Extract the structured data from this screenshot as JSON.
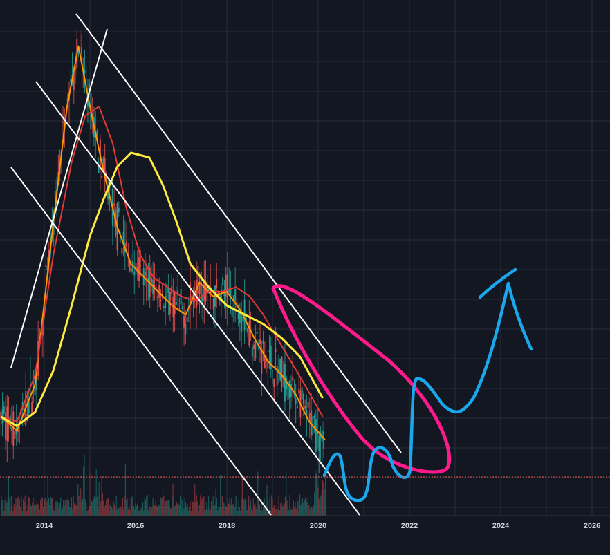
{
  "chart_data": {
    "type": "line",
    "title": "",
    "xlabel": "",
    "ylabel": "",
    "x_axis": {
      "ticks": [
        "2014",
        "2016",
        "2018",
        "2020",
        "2022",
        "2024",
        "2026"
      ],
      "range_years": [
        2013.05,
        2026.4
      ]
    },
    "y_axis": {
      "labels_visible": false,
      "scale": "log"
    },
    "grid": true,
    "legend": "none",
    "colors": {
      "background": "#131722",
      "grid": "#2a2e39",
      "axis_line": "#363a45",
      "candle_up": "#26a69a",
      "candle_down": "#ef5350",
      "ma_short": "#ff9800",
      "ma_mid": "#e53935",
      "ma_long": "#ffeb3b",
      "trendline": "#ffffff",
      "annotation_pink": "#ff1a8c",
      "annotation_blue": "#1aa7ec",
      "current_price_line": "#ef5350"
    },
    "series": [
      {
        "type": "line",
        "color": "#ff9800",
        "x": [
          2013.05,
          2013.4,
          2013.8,
          2014.2,
          2014.5,
          2014.75,
          2015.0,
          2015.3,
          2015.6,
          2015.9,
          2016.2,
          2016.5,
          2016.8,
          2017.1,
          2017.4,
          2017.7,
          2018.0,
          2018.3,
          2018.6,
          2018.9,
          2019.2,
          2019.5,
          2019.8,
          2020.15
        ],
        "y": [
          0.13,
          0.1,
          0.2,
          0.55,
          0.8,
          0.93,
          0.8,
          0.66,
          0.54,
          0.46,
          0.43,
          0.4,
          0.37,
          0.35,
          0.42,
          0.39,
          0.4,
          0.36,
          0.3,
          0.25,
          0.22,
          0.18,
          0.12,
          0.08
        ]
      },
      {
        "type": "line",
        "color": "#e53935",
        "x": [
          2013.05,
          2013.4,
          2013.8,
          2014.2,
          2014.6,
          2014.9,
          2015.2,
          2015.5,
          2015.8,
          2016.1,
          2016.4,
          2016.7,
          2017.0,
          2017.3,
          2017.6,
          2017.9,
          2018.2,
          2018.5,
          2018.8,
          2019.1,
          2019.4,
          2019.7,
          2020.1
        ],
        "y": [
          0.13,
          0.12,
          0.22,
          0.48,
          0.68,
          0.78,
          0.8,
          0.72,
          0.58,
          0.48,
          0.43,
          0.41,
          0.39,
          0.38,
          0.4,
          0.4,
          0.41,
          0.39,
          0.35,
          0.3,
          0.25,
          0.2,
          0.13
        ]
      },
      {
        "type": "line",
        "color": "#ffeb3b",
        "x": [
          2013.05,
          2013.4,
          2013.8,
          2014.2,
          2014.6,
          2015.0,
          2015.3,
          2015.6,
          2015.9,
          2016.3,
          2016.6,
          2016.9,
          2017.2,
          2017.6,
          2018.0,
          2018.4,
          2018.8,
          2019.2,
          2019.6,
          2020.1
        ],
        "y": [
          0.13,
          0.11,
          0.14,
          0.23,
          0.37,
          0.52,
          0.6,
          0.67,
          0.7,
          0.69,
          0.63,
          0.55,
          0.46,
          0.41,
          0.37,
          0.35,
          0.33,
          0.3,
          0.26,
          0.17
        ]
      }
    ],
    "annotations": {
      "trendlines": 5,
      "pink_ellipse": true,
      "blue_projection": true,
      "current_price_line": true
    }
  }
}
